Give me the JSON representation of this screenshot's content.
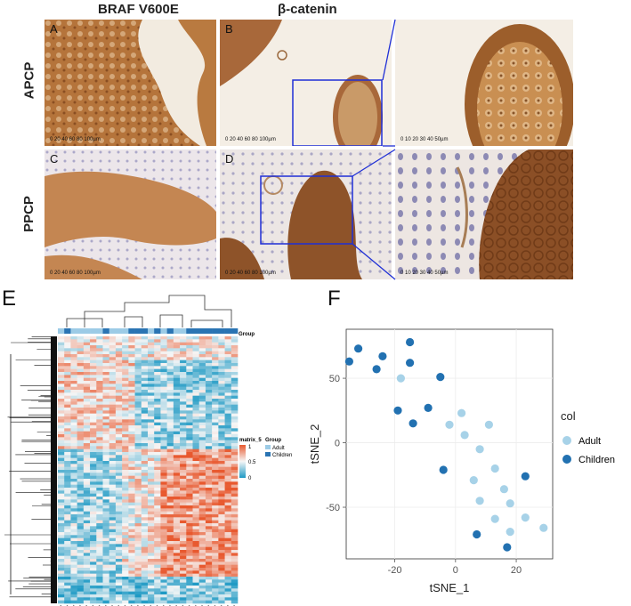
{
  "figure": {
    "col_headers": [
      "BRAF V600E",
      "β-catenin"
    ],
    "row_headers": [
      "APCP",
      "PPCP"
    ],
    "panels": [
      {
        "id": "A",
        "scale": "0 20 40 60 80 100µm"
      },
      {
        "id": "B",
        "scale": "0 20 40 60 80 100µm"
      },
      {
        "id": "C",
        "scale": "0 20 40 60 80 100µm"
      },
      {
        "id": "D",
        "scale": "0 20 40 60 80 100µm"
      }
    ],
    "inset_scales": [
      "0 10 20 30 40 50µm",
      "0 10 20 30 40 50µm"
    ],
    "panel_E_label": "E",
    "panel_F_label": "F",
    "colors": {
      "dab_dark": "#8a4a1c",
      "dab_mid": "#b87a3e",
      "dab_light": "#d9ae7a",
      "background": "#f3ece2",
      "hematoxylin": "#5b5aa0",
      "zoom_box": "#1f2fd6"
    }
  },
  "heatmap": {
    "group_label": "Group",
    "legend_title": "matrix_5",
    "legend_ticks": [
      "1",
      "0.5",
      "0"
    ],
    "group_legend_title": "Group",
    "groups": [
      "Adult",
      "Children"
    ],
    "colors": {
      "high": "#e8592f",
      "mid": "#f6f6f6",
      "low": "#1d99c4",
      "adult": "#9ccbe6",
      "children": "#2a74b3"
    }
  },
  "chart_data": {
    "type": "scatter",
    "xlabel": "tSNE_1",
    "ylabel": "tSNE_2",
    "xticks": [
      -20,
      0,
      20
    ],
    "yticks": [
      50,
      0,
      -50
    ],
    "xlim": [
      -36,
      32
    ],
    "ylim": [
      -90,
      88
    ],
    "legend_title": "col",
    "legend_position": "right",
    "series": [
      {
        "name": "Adult",
        "color": "#a7d2e8",
        "points": [
          [
            -18,
            50
          ],
          [
            -2,
            14
          ],
          [
            2,
            23
          ],
          [
            3,
            6
          ],
          [
            8,
            -5
          ],
          [
            11,
            14
          ],
          [
            13,
            -20
          ],
          [
            6,
            -29
          ],
          [
            16,
            -36
          ],
          [
            18,
            -47
          ],
          [
            8,
            -45
          ],
          [
            13,
            -59
          ],
          [
            18,
            -69
          ],
          [
            23,
            -58
          ],
          [
            29,
            -66
          ]
        ]
      },
      {
        "name": "Children",
        "color": "#2271b1",
        "points": [
          [
            -32,
            73
          ],
          [
            -35,
            63
          ],
          [
            -24,
            67
          ],
          [
            -26,
            57
          ],
          [
            -15,
            78
          ],
          [
            -15,
            62
          ],
          [
            -5,
            51
          ],
          [
            -19,
            25
          ],
          [
            -9,
            27
          ],
          [
            -14,
            15
          ],
          [
            -4,
            -21
          ],
          [
            23,
            -26
          ],
          [
            7,
            -71
          ],
          [
            17,
            -81
          ]
        ]
      }
    ]
  }
}
